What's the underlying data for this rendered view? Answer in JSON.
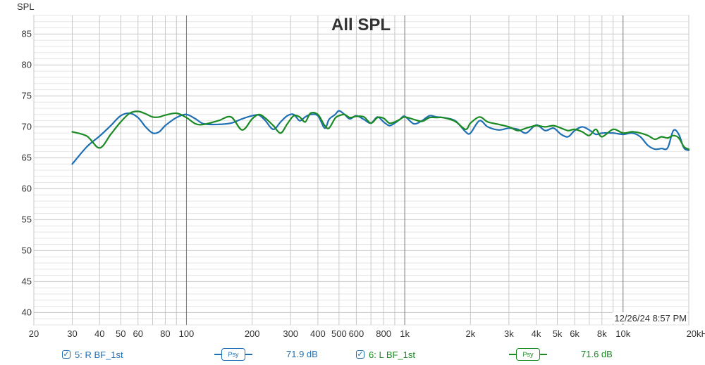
{
  "chart_data": {
    "type": "line",
    "title": "All SPL",
    "ylabel": "SPL",
    "xscale": "log",
    "xlim": [
      20,
      20000
    ],
    "ylim": [
      38,
      88
    ],
    "yticks": [
      40,
      45,
      50,
      55,
      60,
      65,
      70,
      75,
      80,
      85
    ],
    "xticks": [
      {
        "v": 20,
        "label": "20"
      },
      {
        "v": 30,
        "label": "30"
      },
      {
        "v": 40,
        "label": "40"
      },
      {
        "v": 50,
        "label": "50"
      },
      {
        "v": 60,
        "label": "60"
      },
      {
        "v": 80,
        "label": "80"
      },
      {
        "v": 100,
        "label": "100"
      },
      {
        "v": 200,
        "label": "200"
      },
      {
        "v": 300,
        "label": "300"
      },
      {
        "v": 400,
        "label": "400"
      },
      {
        "v": 500,
        "label": "500"
      },
      {
        "v": 600,
        "label": "600"
      },
      {
        "v": 800,
        "label": "800"
      },
      {
        "v": 1000,
        "label": "1k"
      },
      {
        "v": 2000,
        "label": "2k"
      },
      {
        "v": 3000,
        "label": "3k"
      },
      {
        "v": 4000,
        "label": "4k"
      },
      {
        "v": 5000,
        "label": "5k"
      },
      {
        "v": 6000,
        "label": "6k"
      },
      {
        "v": 8000,
        "label": "8k"
      },
      {
        "v": 10000,
        "label": "10k"
      },
      {
        "v": 20000,
        "label": "20kHz"
      }
    ],
    "timestamp": "12/26/24 8:57 PM",
    "grid": true,
    "series": [
      {
        "name": "5: R BF_1st",
        "color": "#1f6fb4",
        "x": [
          30,
          35,
          40,
          45,
          50,
          55,
          60,
          65,
          70,
          75,
          80,
          90,
          100,
          110,
          120,
          140,
          160,
          180,
          200,
          215,
          230,
          250,
          270,
          290,
          310,
          330,
          350,
          370,
          400,
          430,
          450,
          480,
          500,
          530,
          560,
          600,
          650,
          700,
          750,
          800,
          850,
          900,
          950,
          1000,
          1100,
          1200,
          1300,
          1400,
          1500,
          1700,
          1900,
          2000,
          2200,
          2400,
          2700,
          3000,
          3300,
          3600,
          4000,
          4400,
          4800,
          5200,
          5600,
          6000,
          6500,
          7000,
          7500,
          8000,
          9000,
          10000,
          11000,
          12000,
          13000,
          14000,
          15000,
          16000,
          17000,
          18000,
          19000,
          20000
        ],
        "y": [
          64.0,
          66.8,
          68.5,
          70.2,
          71.8,
          72.2,
          71.5,
          70.0,
          69.0,
          69.2,
          70.2,
          71.5,
          72.0,
          71.3,
          70.5,
          70.4,
          70.6,
          71.3,
          71.8,
          71.9,
          71.0,
          69.6,
          70.8,
          71.8,
          72.0,
          71.0,
          71.6,
          72.0,
          71.8,
          69.8,
          71.2,
          72.0,
          72.6,
          72.0,
          71.3,
          71.8,
          71.2,
          70.6,
          71.6,
          70.8,
          70.2,
          70.6,
          71.2,
          71.7,
          70.5,
          71.0,
          71.8,
          71.6,
          71.5,
          71.0,
          69.2,
          69.0,
          71.0,
          70.0,
          69.5,
          69.8,
          69.6,
          69.0,
          70.3,
          69.4,
          69.8,
          68.8,
          68.4,
          69.4,
          70.0,
          69.5,
          68.8,
          69.0,
          69.0,
          68.8,
          69.0,
          68.4,
          67.0,
          66.4,
          66.5,
          66.6,
          69.4,
          68.8,
          66.6,
          66.2
        ]
      },
      {
        "name": "6: L BF_1st",
        "color": "#1a8a22",
        "x": [
          30,
          35,
          40,
          45,
          50,
          55,
          60,
          65,
          70,
          75,
          80,
          90,
          100,
          110,
          120,
          140,
          160,
          180,
          200,
          215,
          230,
          250,
          270,
          290,
          310,
          330,
          350,
          370,
          400,
          430,
          450,
          480,
          500,
          530,
          560,
          600,
          650,
          700,
          750,
          800,
          850,
          900,
          950,
          1000,
          1100,
          1200,
          1300,
          1400,
          1500,
          1700,
          1900,
          2000,
          2200,
          2400,
          2700,
          3000,
          3300,
          3600,
          4000,
          4400,
          4800,
          5200,
          5600,
          6000,
          6500,
          7000,
          7500,
          8000,
          9000,
          10000,
          11000,
          12000,
          13000,
          14000,
          15000,
          16000,
          17000,
          18000,
          19000,
          20000
        ],
        "y": [
          69.2,
          68.5,
          66.6,
          68.8,
          70.8,
          72.2,
          72.5,
          72.1,
          71.6,
          71.6,
          71.9,
          72.2,
          71.5,
          70.5,
          70.4,
          71.0,
          71.6,
          69.5,
          71.3,
          72.0,
          71.4,
          70.2,
          69.0,
          70.5,
          71.8,
          71.6,
          70.8,
          72.2,
          72.0,
          70.2,
          69.8,
          71.4,
          71.8,
          72.0,
          71.5,
          71.7,
          71.6,
          70.6,
          71.5,
          71.4,
          70.6,
          70.8,
          71.2,
          71.6,
          71.2,
          70.9,
          71.5,
          71.5,
          71.5,
          70.9,
          69.6,
          70.6,
          71.6,
          70.8,
          70.4,
          70.0,
          69.4,
          69.8,
          70.2,
          70.0,
          70.2,
          69.8,
          69.4,
          69.6,
          69.2,
          68.6,
          69.6,
          68.4,
          69.6,
          69.0,
          69.2,
          69.0,
          68.6,
          68.0,
          68.4,
          68.2,
          68.6,
          68.2,
          66.8,
          66.4
        ]
      }
    ]
  },
  "legend": {
    "items": [
      {
        "label": "5: R BF_1st",
        "psy": "Psy",
        "value": "71.9 dB",
        "color": "#1f6fb4"
      },
      {
        "label": "6: L BF_1st",
        "psy": "Psy",
        "value": "71.6 dB",
        "color": "#1a8a22"
      }
    ]
  }
}
